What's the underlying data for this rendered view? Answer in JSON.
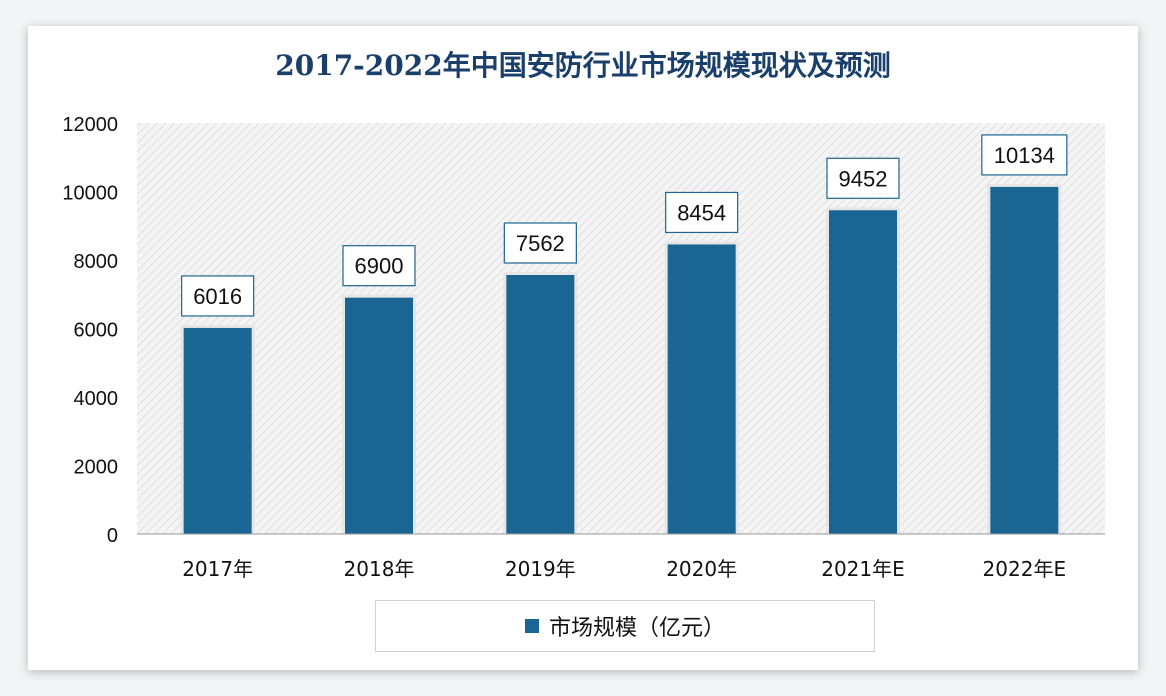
{
  "chart_data": {
    "type": "bar",
    "title": "2017-2022年中国安防行业市场规模现状及预测",
    "categories": [
      "2017年",
      "2018年",
      "2019年",
      "2020年",
      "2021年E",
      "2022年E"
    ],
    "series": [
      {
        "name": "市场规模（亿元）",
        "values": [
          6016,
          6900,
          7562,
          8454,
          9452,
          10134
        ]
      }
    ],
    "ylim": [
      0,
      12000
    ],
    "yticks": [
      0,
      2000,
      4000,
      6000,
      8000,
      10000,
      12000
    ],
    "xlabel": "",
    "ylabel": "",
    "grid": false,
    "legend": "bottom",
    "colors": {
      "bar": "#1b6592",
      "title": "#1a3f6b",
      "label_border": "#1b6592"
    }
  }
}
